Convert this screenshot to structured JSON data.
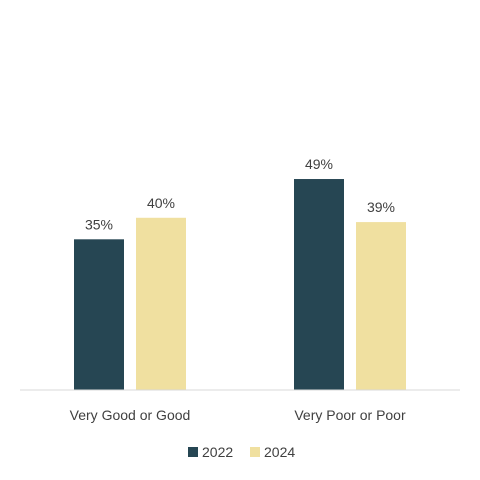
{
  "chart_data": {
    "type": "bar",
    "categories": [
      "Very Good or Good",
      "Very Poor or Poor"
    ],
    "series": [
      {
        "name": "2022",
        "values": [
          35,
          49
        ],
        "labels": [
          "35%",
          "49%"
        ],
        "color": "#264653"
      },
      {
        "name": "2024",
        "values": [
          40,
          39
        ],
        "labels": [
          "40%",
          "39%"
        ],
        "color": "#F0E0A0"
      }
    ],
    "ylim": [
      0,
      72
    ],
    "grid": false,
    "legend_position": "bottom-center"
  }
}
